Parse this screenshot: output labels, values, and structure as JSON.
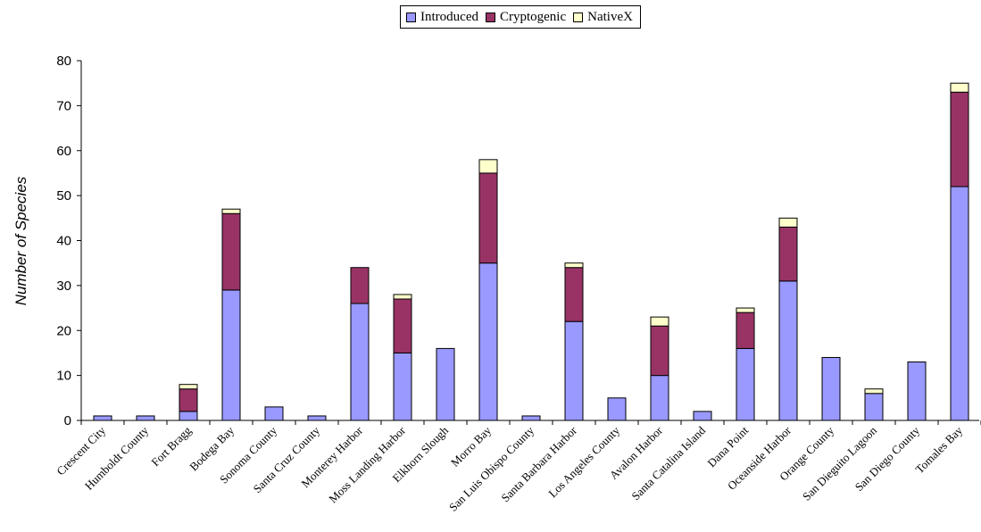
{
  "chart_data": {
    "type": "bar",
    "stacked": true,
    "categories": [
      "Crescent City",
      "Humboldt County",
      "Fort Bragg",
      "Bodega Bay",
      "Sonoma County",
      "Santa Cruz County",
      "Monterey Harbor",
      "Moss Landing Harbor",
      "Elkhorn Slough",
      "Morro Bay",
      "San Luis Obispo County",
      "Santa Barbara Harbor",
      "Los Angeles County",
      "Avalon Harbor",
      "Santa Catalina Island",
      "Dana Point",
      "Oceanside Harbor",
      "Orange County",
      "San Dieguito Lagoon",
      "San Diego County",
      "Tomales Bay"
    ],
    "series": [
      {
        "name": "Introduced",
        "color": "#9999ff",
        "values": [
          1,
          1,
          2,
          29,
          3,
          1,
          26,
          15,
          16,
          35,
          1,
          22,
          5,
          10,
          2,
          16,
          31,
          14,
          6,
          13,
          52
        ]
      },
      {
        "name": "Cryptogenic",
        "color": "#993366",
        "values": [
          0,
          0,
          5,
          17,
          0,
          0,
          8,
          12,
          0,
          20,
          0,
          12,
          0,
          11,
          0,
          8,
          12,
          0,
          0,
          0,
          21
        ]
      },
      {
        "name": "NativeX",
        "color": "#ffffcc",
        "values": [
          0,
          0,
          1,
          1,
          0,
          0,
          0,
          1,
          0,
          3,
          0,
          1,
          0,
          2,
          0,
          1,
          2,
          0,
          1,
          0,
          2
        ]
      }
    ],
    "title": "",
    "xlabel": "",
    "ylabel": "Number of Species",
    "ylim": [
      0,
      80
    ],
    "yticks": [
      0,
      10,
      20,
      30,
      40,
      50,
      60,
      70,
      80
    ],
    "grid": false,
    "legend": "top"
  }
}
